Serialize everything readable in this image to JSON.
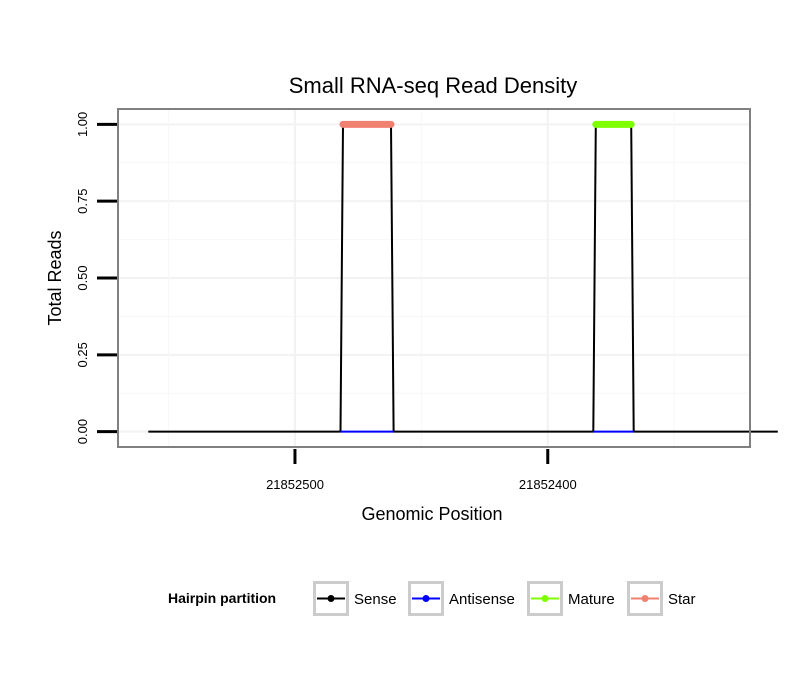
{
  "chart_data": {
    "type": "line",
    "title": "Small RNA-seq Read Density",
    "xlabel": "Genomic Position",
    "ylabel": "Total Reads",
    "xlim": [
      21852570,
      21852320
    ],
    "ylim": [
      -0.05,
      1.05
    ],
    "x_ticks": [
      21852500,
      21852400
    ],
    "x_tick_labels": [
      "21852500",
      "21852400"
    ],
    "y_ticks": [
      0,
      0.25,
      0.5,
      0.75,
      1.0
    ],
    "y_tick_labels": [
      "0.00",
      "0.25",
      "0.50",
      "0.75",
      "1.00"
    ],
    "grid": true,
    "legend": {
      "title": "Hairpin partition",
      "placement": "bottom",
      "entries": [
        {
          "name": "Sense",
          "color": "#000000"
        },
        {
          "name": "Antisense",
          "color": "#0000ff"
        },
        {
          "name": "Mature",
          "color": "#7fff00"
        },
        {
          "name": "Star",
          "color": "#f08070"
        }
      ]
    },
    "series": [
      {
        "name": "Sense",
        "color": "#000000",
        "x": [
          21852558,
          21852482,
          21852481,
          21852462,
          21852461,
          21852382,
          21852381,
          21852367,
          21852366,
          21852309
        ],
        "y": [
          0,
          0,
          1,
          1,
          0,
          0,
          1,
          1,
          0,
          0
        ]
      },
      {
        "name": "Antisense",
        "color": "#0000ff",
        "x": [
          21852482,
          21852461
        ],
        "y": [
          0,
          0
        ]
      },
      {
        "name": "Antisense",
        "color": "#0000ff",
        "x": [
          21852382,
          21852366
        ],
        "y": [
          0,
          0
        ]
      },
      {
        "name": "Star",
        "color": "#f08070",
        "x": [
          21852481,
          21852462
        ],
        "y": [
          1,
          1
        ]
      },
      {
        "name": "Mature",
        "color": "#7fff00",
        "x": [
          21852381,
          21852367
        ],
        "y": [
          1,
          1
        ]
      }
    ]
  }
}
